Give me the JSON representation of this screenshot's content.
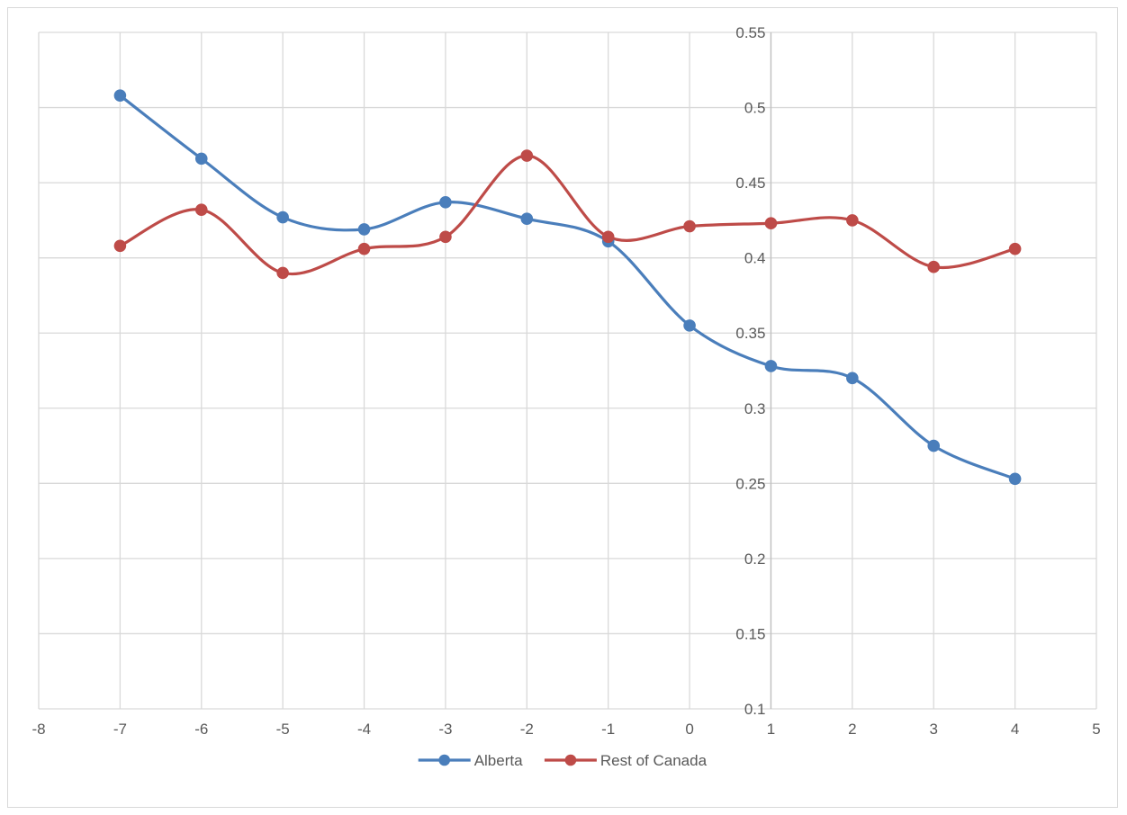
{
  "chart_data": {
    "type": "line",
    "smooth": true,
    "title": "",
    "xlabel": "",
    "ylabel": "",
    "xlim": [
      -8,
      5
    ],
    "ylim": [
      0.1,
      0.55
    ],
    "x_ticks": [
      -8,
      -7,
      -6,
      -5,
      -4,
      -3,
      -2,
      -1,
      0,
      1,
      2,
      3,
      4,
      5
    ],
    "y_ticks": [
      0.1,
      0.15,
      0.2,
      0.25,
      0.3,
      0.35,
      0.4,
      0.45,
      0.5,
      0.55
    ],
    "x_tick_labels": [
      "-8",
      "-7",
      "-6",
      "-5",
      "-4",
      "-3",
      "-2",
      "-1",
      "0",
      "1",
      "2",
      "3",
      "4",
      "5"
    ],
    "y_tick_labels": [
      "0.1",
      "0.15",
      "0.2",
      "0.25",
      "0.3",
      "0.35",
      "0.4",
      "0.45",
      "0.5",
      "0.55"
    ],
    "grid": true,
    "legend_position": "bottom",
    "x": [
      -7,
      -6,
      -5,
      -4,
      -3,
      -2,
      -1,
      0,
      1,
      2,
      3,
      4
    ],
    "series": [
      {
        "name": "Alberta",
        "color": "#4a7ebb",
        "values": [
          0.508,
          0.466,
          0.427,
          0.419,
          0.437,
          0.426,
          0.411,
          0.355,
          0.328,
          0.32,
          0.275,
          0.253
        ]
      },
      {
        "name": "Rest of Canada",
        "color": "#be4b48",
        "values": [
          0.408,
          0.432,
          0.39,
          0.406,
          0.414,
          0.468,
          0.414,
          0.421,
          0.423,
          0.425,
          0.394,
          0.406
        ]
      }
    ],
    "colors": {
      "grid": "#d9d9d9",
      "zero_axis": "#bfbfbf",
      "text": "#595959",
      "border": "#d9d9d9"
    }
  }
}
